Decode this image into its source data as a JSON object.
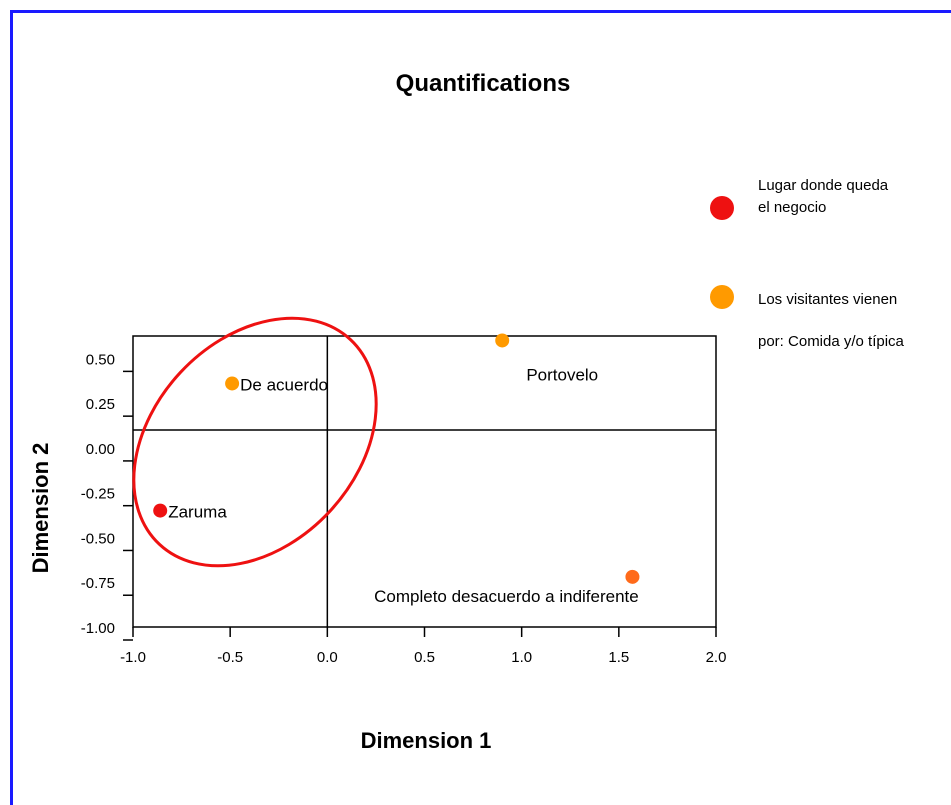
{
  "chart_data": {
    "type": "scatter",
    "title": "Quantifications",
    "xlabel": "Dimension 1",
    "ylabel": "Dimension 2",
    "xlim": [
      -1.0,
      2.0
    ],
    "ylim": [
      -1.0,
      0.625
    ],
    "xticks": [
      "-1.0",
      "-0.5",
      "0.0",
      "0.5",
      "1.0",
      "1.5",
      "2.0"
    ],
    "yticks": [
      "0.50",
      "0.25",
      "0.00",
      "-0.25",
      "-0.50",
      "-0.75",
      "-1.00"
    ],
    "legend": [
      {
        "label_lines": [
          "Lugar donde queda",
          "el negocio"
        ],
        "color": "#ee1111"
      },
      {
        "label_lines": [
          "Los visitantes vienen",
          "por: Comida y/o típica"
        ],
        "color": "#ff9a00"
      }
    ],
    "points": [
      {
        "label": "De acuerdo",
        "x": -0.49,
        "y": 0.36,
        "color": "#ff9a00"
      },
      {
        "label": "Zaruma",
        "x": -0.86,
        "y": -0.35,
        "color": "#ee1111"
      },
      {
        "label": "Portovelo",
        "x": 0.9,
        "y": 0.6,
        "color": "#ff9a00"
      },
      {
        "label": "Completo desacuerdo a indiferente",
        "x": 1.57,
        "y": -0.72,
        "color": "#ff6a1a"
      }
    ],
    "annotation": {
      "type": "ellipse",
      "color": "#ee1111"
    }
  }
}
